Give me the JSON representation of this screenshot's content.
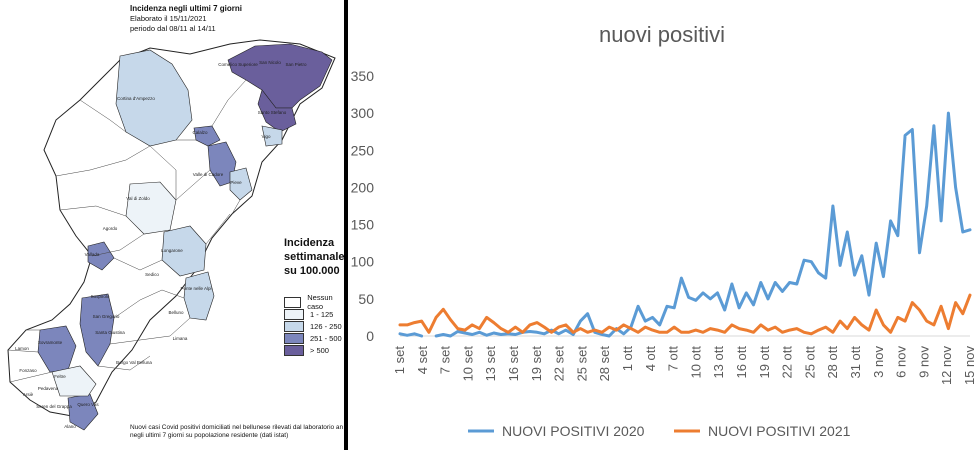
{
  "map": {
    "title": "Incidenza negli ultimi 7 giorni",
    "elaborated": "Elaborato il 15/11/2021",
    "period": "periodo dal 08/11 al 14/11",
    "legend_title_lines": [
      "Incidenza",
      "settimanale",
      "su 100.000"
    ],
    "legend": [
      {
        "label": "Nessun caso",
        "color": "#ffffff"
      },
      {
        "label": "1 - 125",
        "color": "#edf3f8"
      },
      {
        "label": "126 - 250",
        "color": "#c6d8ea"
      },
      {
        "label": "251 - 500",
        "color": "#7c86bc"
      },
      {
        "label": "> 500",
        "color": "#6a5f9c"
      }
    ],
    "footnote": "Nuovi casi Covid positivi domiciliati nel bellunese rilevati dal laboratorio an negli ultimi 7 giorni su popolazione residente (dati istat)",
    "place_labels": [
      "Comelico Superiore",
      "San Nicolo",
      "San Pietro",
      "Santo Stefano",
      "Cortina d'Ampezzo",
      "Vigo",
      "Calalzo",
      "Valle di Cadore",
      "Pieve",
      "Val di Zoldo",
      "Agordo",
      "Longarone",
      "Vallada",
      "Sedico",
      "Ponte nelle Alpi",
      "Sospirolo",
      "Belluno",
      "Santa Giustina",
      "San Gregorio",
      "Limana",
      "Borgo Val Belluna",
      "Feltre",
      "Lamon",
      "Sovramonte",
      "Pedavena",
      "Seren del Grappa",
      "Quero Vas",
      "Arsiè",
      "Fonzaso",
      "Alano"
    ]
  },
  "chart_data": {
    "type": "line",
    "title": "nuovi positivi",
    "xlabel": "",
    "ylabel": "",
    "ylim": [
      0,
      350
    ],
    "yticks": [
      0,
      50,
      100,
      150,
      200,
      250,
      300,
      350
    ],
    "x_tick_labels": [
      "1 set",
      "4 set",
      "7 set",
      "10 set",
      "13 set",
      "16 set",
      "19 set",
      "22 set",
      "25 set",
      "28 set",
      "1 ott",
      "4 ott",
      "7 ott",
      "10 ott",
      "13 ott",
      "16 ott",
      "19 ott",
      "22 ott",
      "25 ott",
      "28 ott",
      "31 ott",
      "3 nov",
      "6 nov",
      "9 nov",
      "12 nov",
      "15 nov"
    ],
    "legend_position": "bottom",
    "grid": false,
    "series": [
      {
        "name": "NUOVI POSITIVI 2020",
        "color": "#5b9bd5",
        "values": [
          3,
          1,
          3,
          0,
          null,
          0,
          2,
          0,
          6,
          4,
          2,
          5,
          1,
          4,
          2,
          3,
          2,
          5,
          6,
          5,
          3,
          8,
          3,
          8,
          2,
          20,
          30,
          5,
          2,
          0,
          10,
          3,
          12,
          40,
          20,
          25,
          15,
          40,
          38,
          78,
          52,
          48,
          58,
          50,
          58,
          35,
          70,
          38,
          58,
          42,
          72,
          50,
          72,
          60,
          72,
          70,
          102,
          100,
          85,
          78,
          175,
          95,
          140,
          82,
          108,
          55,
          125,
          80,
          155,
          135,
          270,
          278,
          112,
          175,
          283,
          155,
          300,
          200,
          140,
          143
        ]
      },
      {
        "name": "NUOVI POSITIVI 2021",
        "color": "#ed7d31",
        "values": [
          15,
          15,
          18,
          20,
          5,
          25,
          36,
          22,
          10,
          8,
          15,
          10,
          25,
          18,
          10,
          5,
          12,
          5,
          15,
          18,
          12,
          5,
          12,
          15,
          5,
          10,
          5,
          8,
          5,
          12,
          8,
          15,
          10,
          5,
          12,
          8,
          5,
          5,
          12,
          5,
          5,
          8,
          5,
          10,
          8,
          5,
          15,
          10,
          8,
          5,
          15,
          8,
          12,
          5,
          8,
          10,
          5,
          3,
          8,
          12,
          5,
          20,
          10,
          25,
          15,
          8,
          35,
          15,
          5,
          25,
          20,
          45,
          35,
          20,
          15,
          40,
          10,
          45,
          30,
          55
        ]
      }
    ]
  }
}
